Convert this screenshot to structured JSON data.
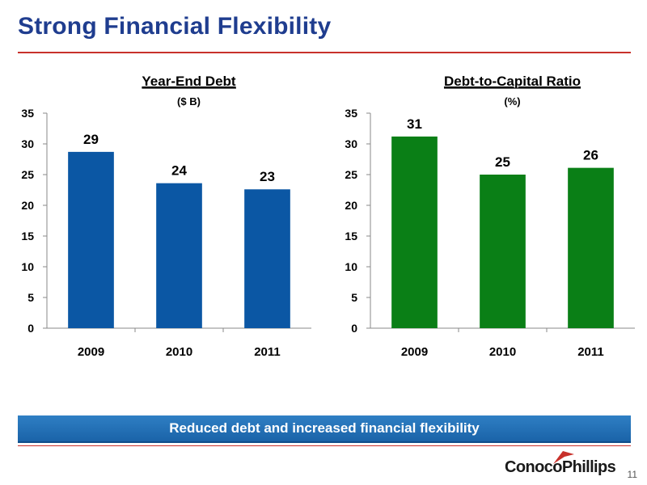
{
  "slide": {
    "title": "Strong Financial Flexibility",
    "banner": "Reduced debt and increased financial flexibility",
    "logo": "ConocoPhillips",
    "page_number": "11"
  },
  "colors": {
    "title": "#1f3d8f",
    "rule": "#c8312b",
    "debt_bars": "#0b57a4",
    "ratio_bars": "#0a7f16",
    "banner": "#1a63a8"
  },
  "chart_data": [
    {
      "type": "bar",
      "title": "Year-End Debt",
      "subtitle": "($ B)",
      "categories": [
        "2009",
        "2010",
        "2011"
      ],
      "values": [
        28.7,
        23.6,
        22.6
      ],
      "data_labels": [
        "29",
        "24",
        "23"
      ],
      "ylim": [
        0,
        35
      ],
      "yticks": [
        0,
        5,
        10,
        15,
        20,
        25,
        30,
        35
      ],
      "grid": false,
      "color": "#0b57a4"
    },
    {
      "type": "bar",
      "title": "Debt-to-Capital Ratio",
      "subtitle": "(%)",
      "categories": [
        "2009",
        "2010",
        "2011"
      ],
      "values": [
        31.2,
        25.0,
        26.1
      ],
      "data_labels": [
        "31",
        "25",
        "26"
      ],
      "ylim": [
        0,
        35
      ],
      "yticks": [
        0,
        5,
        10,
        15,
        20,
        25,
        30,
        35
      ],
      "grid": false,
      "color": "#0a7f16"
    }
  ]
}
